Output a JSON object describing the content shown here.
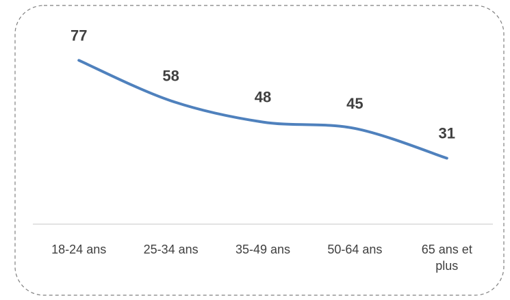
{
  "chart_data": {
    "type": "line",
    "categories": [
      "18-24 ans",
      "25-34 ans",
      "35-49 ans",
      "50-64 ans",
      "65 ans et plus"
    ],
    "values": [
      77,
      58,
      48,
      45,
      31
    ],
    "color": "#4f81bd",
    "ylim": [
      0,
      80
    ]
  }
}
